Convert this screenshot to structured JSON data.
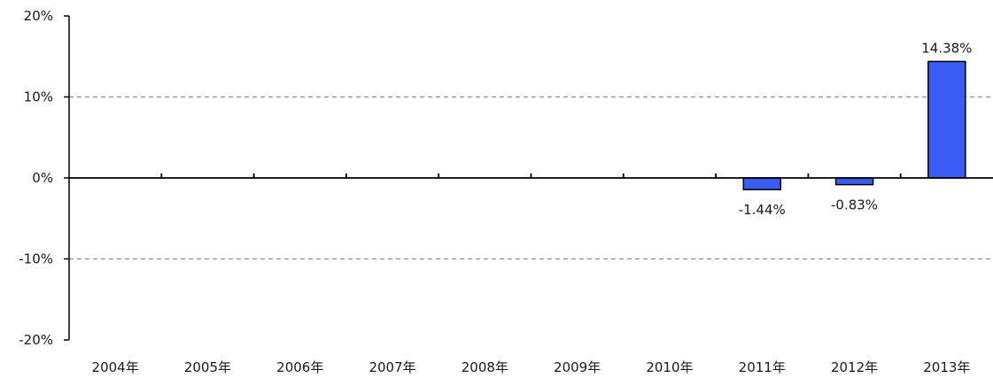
{
  "chart_data": {
    "type": "bar",
    "title": "",
    "xlabel": "",
    "ylabel": "",
    "categories": [
      "2004年",
      "2005年",
      "2006年",
      "2007年",
      "2008年",
      "2009年",
      "2010年",
      "2011年",
      "2012年",
      "2013年"
    ],
    "series": [
      {
        "values": [
          0,
          0,
          0,
          0,
          0,
          0,
          0,
          -1.44,
          -0.83,
          14.38
        ]
      }
    ],
    "data_labels": [
      "",
      "",
      "",
      "",
      "",
      "",
      "",
      "-1.44%",
      "-0.83%",
      "14.38%"
    ],
    "ylim": [
      -20,
      20
    ],
    "yticks": [
      20,
      10,
      0,
      -10,
      -20
    ],
    "ytick_labels": [
      "20%",
      "10%",
      "0%",
      "-10%",
      "-20%"
    ],
    "gridlines": [
      10,
      -10
    ],
    "grid": true,
    "legend": "none",
    "colors": {
      "bar_fill": "#3a5cf5",
      "bar_stroke": "#000000",
      "grid": "#8a8a8a",
      "axis": "#000000"
    }
  }
}
